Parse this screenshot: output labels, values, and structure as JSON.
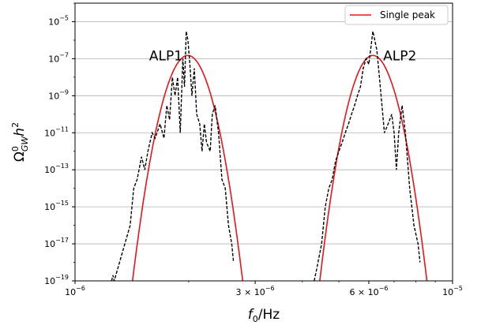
{
  "chart_data": {
    "type": "line",
    "x_scale": "log",
    "y_scale": "log",
    "xlim": [
      1e-06,
      1e-05
    ],
    "ylim": [
      1e-19,
      0.0001
    ],
    "grid": "horizontal",
    "xlabel": "f₀/Hz",
    "ylabel": "Ω⁰_GW h²",
    "x_ticks": [
      {
        "value": 1e-06,
        "base": "10",
        "exp": "−6",
        "label": "10^-6"
      },
      {
        "value": 3e-06,
        "base": "3 × 10",
        "exp": "−6",
        "label": "3×10^-6"
      },
      {
        "value": 6e-06,
        "base": "6 × 10",
        "exp": "−6",
        "label": "6×10^-6"
      },
      {
        "value": 1e-05,
        "base": "10",
        "exp": "−5",
        "label": "10^-5"
      }
    ],
    "y_ticks": [
      {
        "value": 1e-19,
        "exp": "−19"
      },
      {
        "value": 1e-17,
        "exp": "−17"
      },
      {
        "value": 1e-15,
        "exp": "−15"
      },
      {
        "value": 1e-13,
        "exp": "−13"
      },
      {
        "value": 1e-11,
        "exp": "−11"
      },
      {
        "value": 1e-09,
        "exp": "−9"
      },
      {
        "value": 1e-07,
        "exp": "−7"
      },
      {
        "value": 1e-05,
        "exp": "−5"
      }
    ],
    "legend": {
      "position": "top-right",
      "entries": [
        {
          "name": "Single peak",
          "color": "#e8141c",
          "style": "solid"
        }
      ]
    },
    "annotations": [
      {
        "text": "ALP1",
        "x": 1.74e-06,
        "y": 1e-07
      },
      {
        "text": "ALP2",
        "x": 7.25e-06,
        "y": 1e-07
      }
    ],
    "series": [
      {
        "name": "Single peak",
        "style": "solid",
        "color": "#e8141c",
        "peaks": [
          {
            "center_hz": 1.99e-06,
            "peak_value": 1.5e-07,
            "low_edge_hz": 1.42e-06,
            "high_edge_hz": 2.78e-06
          },
          {
            "center_hz": 6.15e-06,
            "peak_value": 1.5e-07,
            "low_edge_hz": 4.45e-06,
            "high_edge_hz": 8.55e-06
          }
        ]
      },
      {
        "name": "",
        "style": "dashed",
        "color": "#000000",
        "points": [
          [
            1.25e-06,
            1e-19
          ],
          [
            1.26e-06,
            2e-19
          ],
          [
            1.27e-06,
            1e-19
          ],
          [
            1.4e-06,
            1e-16
          ],
          [
            1.43e-06,
            1e-14
          ],
          [
            1.46e-06,
            3e-14
          ],
          [
            1.5e-06,
            5e-13
          ],
          [
            1.53e-06,
            1e-13
          ],
          [
            1.56e-06,
            1e-12
          ],
          [
            1.6e-06,
            1e-11
          ],
          [
            1.63e-06,
            5e-12
          ],
          [
            1.68e-06,
            3e-11
          ],
          [
            1.72e-06,
            5e-12
          ],
          [
            1.75e-06,
            3e-10
          ],
          [
            1.78e-06,
            5e-11
          ],
          [
            1.81e-06,
            1e-08
          ],
          [
            1.84e-06,
            1e-09
          ],
          [
            1.87e-06,
            1e-08
          ],
          [
            1.9e-06,
            1e-11
          ],
          [
            1.93e-06,
            1e-07
          ],
          [
            1.95e-06,
            3e-09
          ],
          [
            1.97e-06,
            3e-06
          ],
          [
            1.99e-06,
            1e-06
          ],
          [
            2.01e-06,
            1e-07
          ],
          [
            2.04e-06,
            1e-09
          ],
          [
            2.07e-06,
            3e-08
          ],
          [
            2.1e-06,
            1e-10
          ],
          [
            2.14e-06,
            3e-11
          ],
          [
            2.17e-06,
            1e-12
          ],
          [
            2.2e-06,
            3e-11
          ],
          [
            2.23e-06,
            3e-12
          ],
          [
            2.28e-06,
            1e-12
          ],
          [
            2.31e-06,
            1e-10
          ],
          [
            2.35e-06,
            3e-10
          ],
          [
            2.4e-06,
            1e-11
          ],
          [
            2.45e-06,
            3e-14
          ],
          [
            2.5e-06,
            1e-14
          ],
          [
            2.55e-06,
            1e-16
          ],
          [
            2.6e-06,
            1e-17
          ],
          [
            2.63e-06,
            1e-18
          ],
          [
            4.3e-06,
            1e-19
          ],
          [
            4.35e-06,
            3e-19
          ],
          [
            4.5e-06,
            1e-17
          ],
          [
            4.6e-06,
            1e-15
          ],
          [
            4.7e-06,
            1e-14
          ],
          [
            4.8e-06,
            3e-14
          ],
          [
            4.9e-06,
            3e-13
          ],
          [
            5e-06,
            1e-12
          ],
          [
            5.1e-06,
            3e-12
          ],
          [
            5.2e-06,
            1e-11
          ],
          [
            5.3e-06,
            3e-11
          ],
          [
            5.4e-06,
            1e-10
          ],
          [
            5.5e-06,
            3e-10
          ],
          [
            5.6e-06,
            1e-09
          ],
          [
            5.7e-06,
            3e-09
          ],
          [
            5.8e-06,
            3e-08
          ],
          [
            5.9e-06,
            1e-07
          ],
          [
            6e-06,
            5e-08
          ],
          [
            6.15e-06,
            3e-06
          ],
          [
            6.3e-06,
            3e-07
          ],
          [
            6.4e-06,
            1e-08
          ],
          [
            6.5e-06,
            3e-10
          ],
          [
            6.6e-06,
            1e-11
          ],
          [
            6.75e-06,
            3e-11
          ],
          [
            6.9e-06,
            1e-10
          ],
          [
            7e-06,
            1e-11
          ],
          [
            7.1e-06,
            1e-13
          ],
          [
            7.2e-06,
            1e-11
          ],
          [
            7.35e-06,
            3e-10
          ],
          [
            7.5e-06,
            1e-11
          ],
          [
            7.7e-06,
            1e-14
          ],
          [
            7.9e-06,
            1e-16
          ],
          [
            8.1e-06,
            1e-17
          ],
          [
            8.2e-06,
            1e-18
          ]
        ]
      }
    ]
  }
}
